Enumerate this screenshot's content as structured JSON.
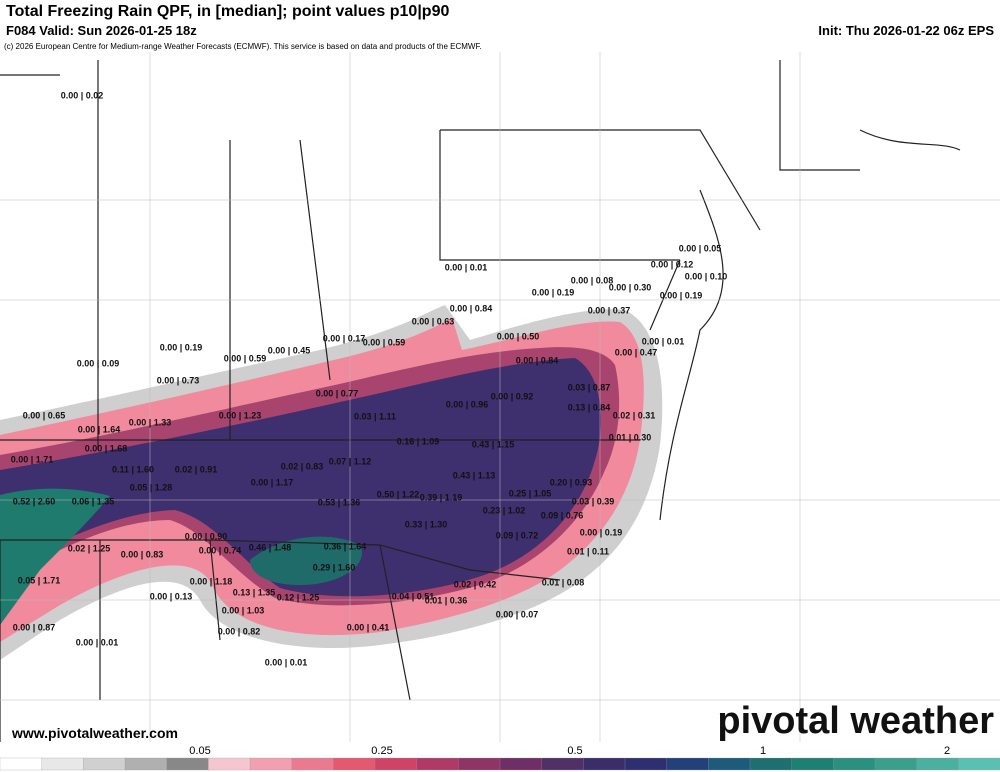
{
  "header": {
    "title": "Total Freezing Rain QPF, in [median]; point values p10|p90",
    "valid": "F084 Valid: Sun 2026-01-25 18z",
    "init": "Init: Thu 2026-01-22 06z EPS",
    "copyright": "(c) 2026 European Centre for Medium-range Weather Forecasts (ECMWF). This service is based on data and products of the ECMWF."
  },
  "point_values": [
    "0.00 | 0.02",
    "0.00 | 0.01",
    "0.00 | 0.05",
    "0.00 | 0.12",
    "0.00 | 0.10",
    "0.00 | 0.08",
    "0.00 | 0.19",
    "0.00 | 0.30",
    "0.00 | 0.19",
    "0.00 | 0.84",
    "0.00 | 0.63",
    "0.00 | 0.37",
    "0.00 | 0.17",
    "0.00 | 0.59",
    "0.00 | 0.50",
    "0.00 | 0.01",
    "0.00 | 0.19",
    "0.00 | 0.45",
    "0.00 | 0.59",
    "0.00 | 0.47",
    "0.00 | 0.09",
    "0.00 | 0.84",
    "0.00 | 0.73",
    "0.03 | 0.87",
    "0.00 | 0.77",
    "0.00 | 0.92",
    "0.13 | 0.84",
    "0.00 | 0.96",
    "0.00 | 1.23",
    "0.03 | 1.11",
    "0.02 | 0.31",
    "0.00 | 0.65",
    "0.00 | 1.33",
    "0.00 | 1.64",
    "0.01 | 0.30",
    "0.16 | 1.09",
    "0.43 | 1.15",
    "0.00 | 1.68",
    "0.00 | 1.71",
    "0.07 | 1.12",
    "0.02 | 0.83",
    "0.11 | 1.60",
    "0.02 | 0.91",
    "0.43 | 1.13",
    "0.00 | 1.17",
    "0.20 | 0.93",
    "0.05 | 1.28",
    "0.25 | 1.05",
    "0.50 | 1.22",
    "0.39 | 1.19",
    "0.52 | 2.60",
    "0.06 | 1.35",
    "0.53 | 1.36",
    "0.03 | 0.39",
    "0.23 | 1.02",
    "0.09 | 0.76",
    "0.33 | 1.30",
    "0.00 | 0.90",
    "0.00 | 0.19",
    "0.09 | 0.72",
    "0.46 | 1.48",
    "0.36 | 1.64",
    "0.00 | 0.74",
    "0.02 | 1.25",
    "0.00 | 0.83",
    "0.01 | 0.11",
    "0.29 | 1.60",
    "0.05 | 1.71",
    "0.00 | 1.18",
    "0.02 | 0.42",
    "0.01 | 0.08",
    "0.13 | 1.35",
    "0.00 | 0.13",
    "0.12 | 1.25",
    "0.04 | 0.51",
    "0.01 | 0.36",
    "0.00 | 1.03",
    "0.00 | 0.07",
    "0.00 | 0.87",
    "0.00 | 0.82",
    "0.00 | 0.41",
    "0.00 | 0.01",
    "0.00 | 0.01"
  ],
  "colorbar": {
    "ticks": [
      "0.05",
      "0.25",
      "0.5",
      "1",
      "2"
    ]
  },
  "footer": {
    "website": "www.pivotalweather.com",
    "logo": "pivotal weather"
  }
}
